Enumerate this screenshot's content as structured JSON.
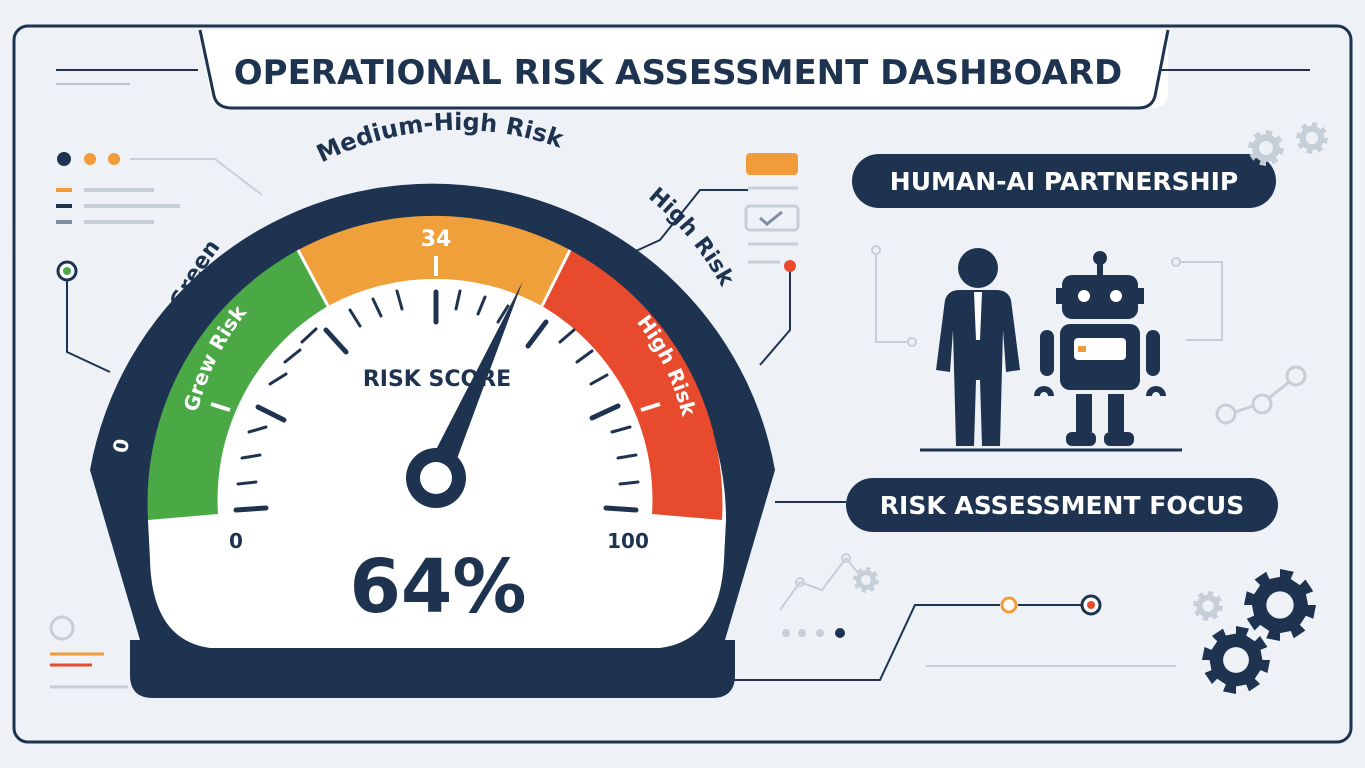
{
  "title": "OPERATIONAL RISK ASSESSMENT DASHBOARD",
  "gauge": {
    "value_percent": 64,
    "score_display": "64%",
    "score_label": "RISK SCORE",
    "arc_labels": {
      "green": "Green",
      "medium_high": "Medium-High Risk",
      "high": "High Risk",
      "outer_min": "0",
      "outer_max": "100"
    },
    "band_labels": {
      "green_band": "Grew Risk",
      "medium_band_value": "34",
      "red_band": "High Risk"
    },
    "scale_min": "0",
    "scale_max": "100"
  },
  "right_panel": {
    "partnership_label": "HUMAN-AI PARTNERSHIP",
    "focus_label": "RISK ASSESSMENT FOCUS"
  },
  "icons": [
    "gear-icon",
    "person-icon",
    "robot-icon",
    "checklist-icon",
    "network-icon"
  ],
  "colors": {
    "navy": "#1e3350",
    "green": "#4aa845",
    "orange": "#f0a03a",
    "red": "#e84a2e",
    "accent_orange": "#f29b3a",
    "background": "#eef2f6"
  }
}
